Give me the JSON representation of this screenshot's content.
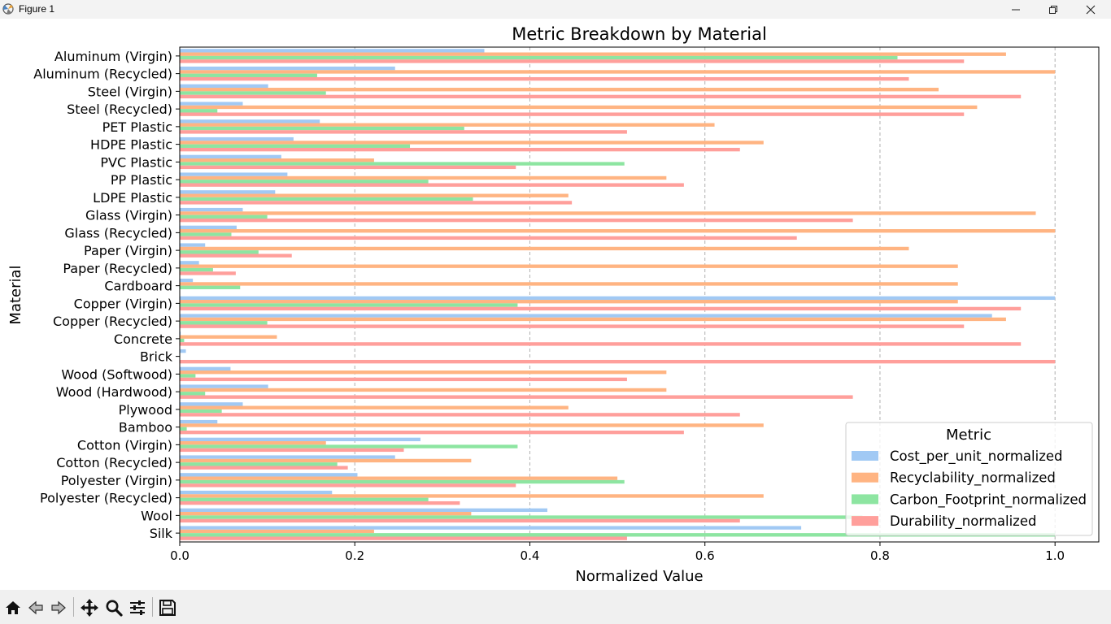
{
  "window": {
    "title": "Figure 1"
  },
  "toolbar": {
    "buttons": [
      "home-icon",
      "back-icon",
      "forward-icon",
      "pan-icon",
      "zoom-icon",
      "configure-subplots-icon",
      "save-icon"
    ]
  },
  "chart_data": {
    "type": "bar",
    "orientation": "horizontal",
    "title": "Metric Breakdown by Material",
    "xlabel": "Normalized Value",
    "ylabel": "Material",
    "xlim": [
      0,
      1.05
    ],
    "xticks": [
      "0.0",
      "0.2",
      "0.4",
      "0.6",
      "0.8",
      "1.0"
    ],
    "grid": "x-dashed",
    "legend": {
      "title": "Metric",
      "placement": "lower-right"
    },
    "categories": [
      "Aluminum (Virgin)",
      "Aluminum (Recycled)",
      "Steel (Virgin)",
      "Steel (Recycled)",
      "PET Plastic",
      "HDPE Plastic",
      "PVC Plastic",
      "PP Plastic",
      "LDPE Plastic",
      "Glass (Virgin)",
      "Glass (Recycled)",
      "Paper (Virgin)",
      "Paper (Recycled)",
      "Cardboard",
      "Copper (Virgin)",
      "Copper (Recycled)",
      "Concrete",
      "Brick",
      "Wood (Softwood)",
      "Wood (Hardwood)",
      "Plywood",
      "Bamboo",
      "Cotton (Virgin)",
      "Cotton (Recycled)",
      "Polyester (Virgin)",
      "Polyester (Recycled)",
      "Wool",
      "Silk"
    ],
    "series": [
      {
        "name": "Cost_per_unit_normalized",
        "color": "#a1c9f4",
        "values": [
          0.348,
          0.246,
          0.101,
          0.072,
          0.16,
          0.13,
          0.116,
          0.123,
          0.109,
          0.072,
          0.065,
          0.029,
          0.022,
          0.015,
          1.0,
          0.928,
          0.001,
          0.007,
          0.058,
          0.101,
          0.072,
          0.043,
          0.275,
          0.246,
          0.203,
          0.174,
          0.42,
          0.71
        ]
      },
      {
        "name": "Recyclability_normalized",
        "color": "#ffb482",
        "values": [
          0.944,
          1.0,
          0.867,
          0.911,
          0.611,
          0.667,
          0.222,
          0.556,
          0.444,
          0.978,
          1.0,
          0.833,
          0.889,
          0.889,
          0.889,
          0.944,
          0.111,
          0.0,
          0.556,
          0.556,
          0.444,
          0.667,
          0.167,
          0.333,
          0.5,
          0.667,
          0.333,
          0.222
        ]
      },
      {
        "name": "Carbon_Footprint_normalized",
        "color": "#8de5a1",
        "values": [
          0.82,
          0.157,
          0.167,
          0.043,
          0.325,
          0.263,
          0.508,
          0.284,
          0.335,
          0.1,
          0.059,
          0.09,
          0.038,
          0.069,
          0.386,
          0.1,
          0.005,
          0.0,
          0.018,
          0.029,
          0.048,
          0.008,
          0.386,
          0.18,
          0.508,
          0.284,
          0.78,
          1.0
        ]
      },
      {
        "name": "Durability_normalized",
        "color": "#ff9f9b",
        "values": [
          0.896,
          0.833,
          0.961,
          0.896,
          0.511,
          0.64,
          0.384,
          0.576,
          0.448,
          0.769,
          0.705,
          0.128,
          0.064,
          0.0,
          0.961,
          0.896,
          0.961,
          1.0,
          0.511,
          0.769,
          0.64,
          0.576,
          0.256,
          0.192,
          0.384,
          0.32,
          0.64,
          0.511
        ]
      }
    ]
  }
}
